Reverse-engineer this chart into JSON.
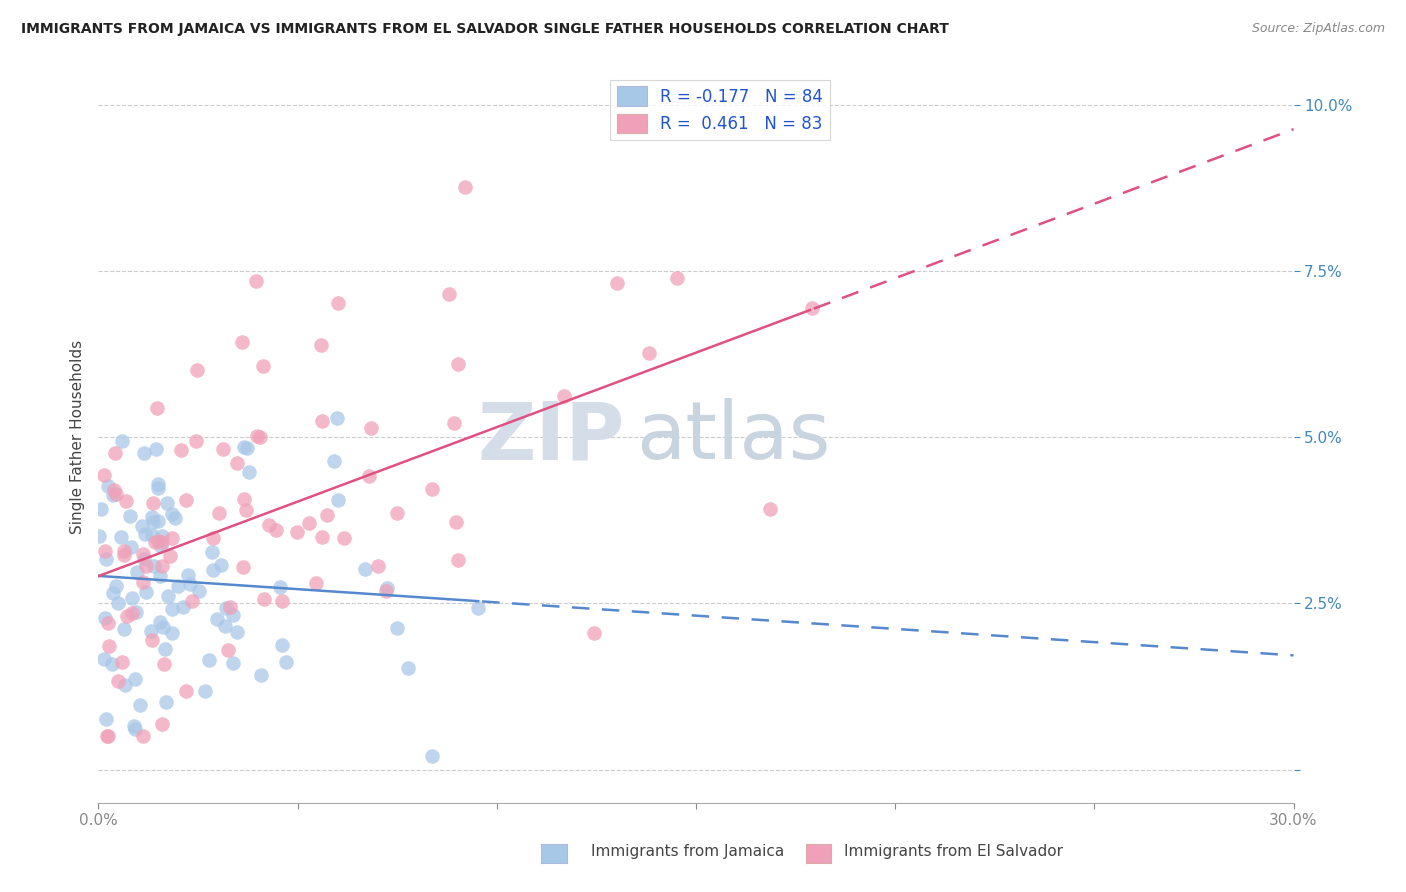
{
  "title": "IMMIGRANTS FROM JAMAICA VS IMMIGRANTS FROM EL SALVADOR SINGLE FATHER HOUSEHOLDS CORRELATION CHART",
  "source": "Source: ZipAtlas.com",
  "xlabel_jamaica": "Immigrants from Jamaica",
  "xlabel_salvador": "Immigrants from El Salvador",
  "ylabel": "Single Father Households",
  "xlim": [
    0.0,
    0.3
  ],
  "ylim": [
    -0.005,
    0.105
  ],
  "ytick_vals": [
    0.0,
    0.025,
    0.05,
    0.075,
    0.1
  ],
  "ytick_labels": [
    "",
    "2.5%",
    "5.0%",
    "7.5%",
    "10.0%"
  ],
  "xtick_vals": [
    0.0,
    0.05,
    0.1,
    0.15,
    0.2,
    0.25,
    0.3
  ],
  "xtick_labels": [
    "0.0%",
    "",
    "",
    "",
    "",
    "",
    "30.0%"
  ],
  "color_jamaica": "#a8c8e8",
  "color_salvador": "#f0a0b8",
  "line_color_jamaica": "#5588cc",
  "line_color_salvador": "#e05080",
  "R_jamaica": -0.177,
  "N_jamaica": 84,
  "R_salvador": 0.461,
  "N_salvador": 83,
  "watermark_zip": "ZIP",
  "watermark_atlas": "atlas",
  "seed": 7
}
